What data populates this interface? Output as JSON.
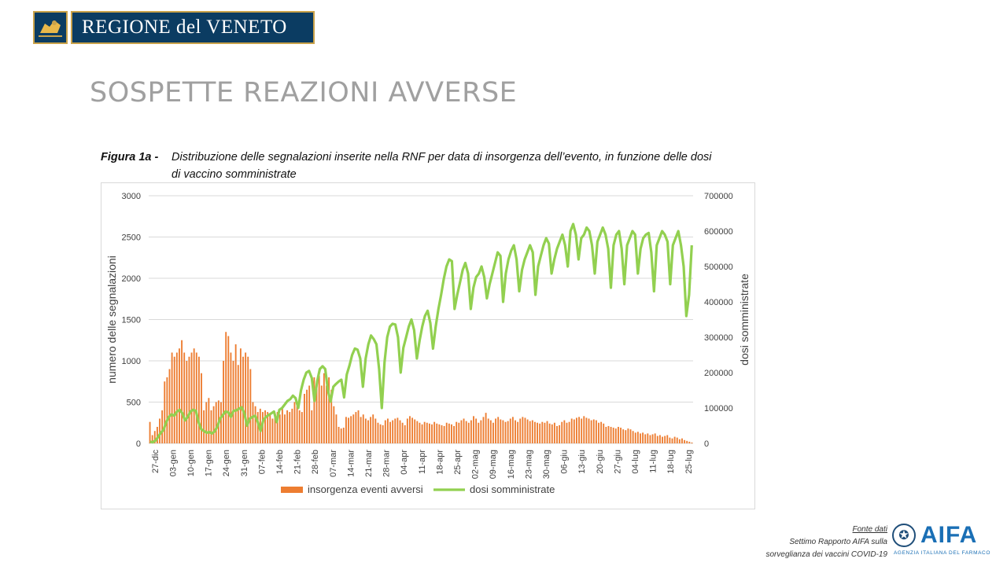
{
  "header": {
    "region_name": "REGIONE del VENETO",
    "crest_icon": "lion-of-st-mark-icon"
  },
  "slide": {
    "title": "SOSPETTE REAZIONI AVVERSE"
  },
  "figure": {
    "label": "Figura 1a -",
    "caption_line1": "Distribuzione delle segnalazioni inserite nella RNF per data di insorgenza dell’evento, in funzione delle  dosi",
    "caption_line2": "di vaccino somministrate"
  },
  "footer": {
    "source_label": "Fonte dati",
    "source_line1": "Settimo Rapporto AIFA sulla",
    "source_line2": "sorveglianza dei vaccini COVID-19",
    "agency_logo_text": "AIFA",
    "agency_subtitle": "AGENZIA ITALIANA DEL FARMACO"
  },
  "colors": {
    "bars": "#ed7d31",
    "line": "#92d050",
    "grid": "#d9d9d9",
    "brand_blue": "#0b3c62",
    "brand_gold": "#c9a24a"
  },
  "chart_data": {
    "type": "bar+line",
    "xlabel": "",
    "ylabel": "numero delle segnalazioni",
    "ylabel_right": "dosi somministrate",
    "ylim": [
      0,
      3000
    ],
    "ylim_right": [
      0,
      700000
    ],
    "yticks": [
      0,
      500,
      1000,
      1500,
      2000,
      2500,
      3000
    ],
    "yticks_right": [
      0,
      100000,
      200000,
      300000,
      400000,
      500000,
      600000,
      700000
    ],
    "grid": true,
    "legend_position": "bottom",
    "x_ticks": [
      "27-dic",
      "03-gen",
      "10-gen",
      "17-gen",
      "24-gen",
      "31-gen",
      "07-feb",
      "14-feb",
      "21-feb",
      "28-feb",
      "07-mar",
      "14-mar",
      "21-mar",
      "28-mar",
      "04-apr",
      "11-apr",
      "18-apr",
      "25-apr",
      "02-mag",
      "09-mag",
      "16-mag",
      "23-mag",
      "30-mag",
      "06-giu",
      "13-giu",
      "20-giu",
      "27-giu",
      "04-lug",
      "11-lug",
      "18-lug",
      "25-lug"
    ],
    "series": [
      {
        "name": "insorgenza eventi avversi",
        "kind": "bar",
        "axis": "left",
        "values": [
          260,
          100,
          150,
          200,
          300,
          400,
          750,
          800,
          900,
          1100,
          1050,
          1100,
          1150,
          1250,
          1100,
          1000,
          1050,
          1100,
          1150,
          1100,
          1050,
          850,
          400,
          500,
          550,
          400,
          450,
          500,
          520,
          500,
          1000,
          1350,
          1300,
          1100,
          1000,
          1200,
          950,
          1150,
          1050,
          1100,
          1050,
          900,
          500,
          450,
          380,
          420,
          380,
          400,
          380,
          350,
          300,
          320,
          380,
          350,
          450,
          350,
          400,
          380,
          420,
          500,
          450,
          400,
          380,
          600,
          650,
          700,
          400,
          800,
          750,
          820,
          700,
          850,
          700,
          800,
          650,
          450,
          350,
          200,
          180,
          190,
          320,
          310,
          330,
          350,
          380,
          400,
          320,
          350,
          300,
          280,
          320,
          350,
          300,
          250,
          230,
          220,
          280,
          300,
          260,
          280,
          300,
          310,
          280,
          250,
          220,
          300,
          330,
          310,
          290,
          270,
          250,
          230,
          260,
          250,
          240,
          230,
          260,
          240,
          230,
          220,
          210,
          250,
          240,
          230,
          210,
          260,
          250,
          280,
          300,
          270,
          250,
          280,
          330,
          300,
          250,
          280,
          320,
          370,
          300,
          280,
          250,
          300,
          320,
          290,
          280,
          260,
          270,
          300,
          320,
          280,
          260,
          300,
          320,
          310,
          290,
          270,
          280,
          260,
          250,
          240,
          260,
          250,
          270,
          240,
          230,
          250,
          210,
          220,
          260,
          280,
          250,
          260,
          300,
          290,
          310,
          320,
          300,
          330,
          310,
          300,
          280,
          290,
          280,
          250,
          260,
          240,
          200,
          210,
          200,
          190,
          180,
          200,
          190,
          170,
          160,
          180,
          170,
          150,
          130,
          140,
          120,
          130,
          110,
          120,
          100,
          110,
          120,
          90,
          100,
          80,
          90,
          100,
          70,
          60,
          80,
          70,
          50,
          60,
          40,
          30,
          20,
          10
        ]
      },
      {
        "name": "dosi somministrate",
        "kind": "line",
        "axis": "right",
        "values": [
          5000,
          3000,
          8000,
          18000,
          30000,
          38000,
          60000,
          75000,
          82000,
          78000,
          90000,
          95000,
          85000,
          65000,
          75000,
          90000,
          95000,
          92000,
          60000,
          40000,
          35000,
          30000,
          32000,
          28000,
          34000,
          48000,
          70000,
          80000,
          90000,
          88000,
          75000,
          92000,
          93000,
          98000,
          102000,
          85000,
          50000,
          70000,
          75000,
          78000,
          60000,
          35000,
          65000,
          75000,
          80000,
          85000,
          90000,
          60000,
          95000,
          100000,
          110000,
          120000,
          125000,
          135000,
          128000,
          100000,
          150000,
          180000,
          200000,
          205000,
          185000,
          120000,
          175000,
          210000,
          218000,
          210000,
          150000,
          118000,
          160000,
          168000,
          175000,
          180000,
          130000,
          195000,
          220000,
          250000,
          268000,
          265000,
          240000,
          160000,
          240000,
          280000,
          305000,
          295000,
          280000,
          210000,
          100000,
          230000,
          300000,
          330000,
          338000,
          336000,
          300000,
          200000,
          270000,
          300000,
          330000,
          350000,
          320000,
          240000,
          290000,
          330000,
          360000,
          375000,
          340000,
          268000,
          330000,
          380000,
          420000,
          465000,
          500000,
          520000,
          515000,
          380000,
          420000,
          455000,
          490000,
          510000,
          480000,
          380000,
          440000,
          470000,
          480000,
          500000,
          470000,
          410000,
          450000,
          480000,
          510000,
          540000,
          530000,
          400000,
          480000,
          520000,
          545000,
          560000,
          520000,
          430000,
          490000,
          520000,
          540000,
          560000,
          540000,
          420000,
          500000,
          530000,
          560000,
          580000,
          565000,
          480000,
          520000,
          550000,
          570000,
          590000,
          560000,
          500000,
          600000,
          620000,
          590000,
          520000,
          580000,
          590000,
          610000,
          600000,
          560000,
          480000,
          570000,
          590000,
          610000,
          590000,
          550000,
          440000,
          560000,
          590000,
          600000,
          550000,
          450000,
          560000,
          580000,
          600000,
          590000,
          480000,
          550000,
          580000,
          590000,
          595000,
          540000,
          430000,
          560000,
          580000,
          600000,
          590000,
          570000,
          450000,
          560000,
          580000,
          600000,
          560000,
          500000,
          360000,
          420000,
          560000
        ]
      }
    ]
  }
}
